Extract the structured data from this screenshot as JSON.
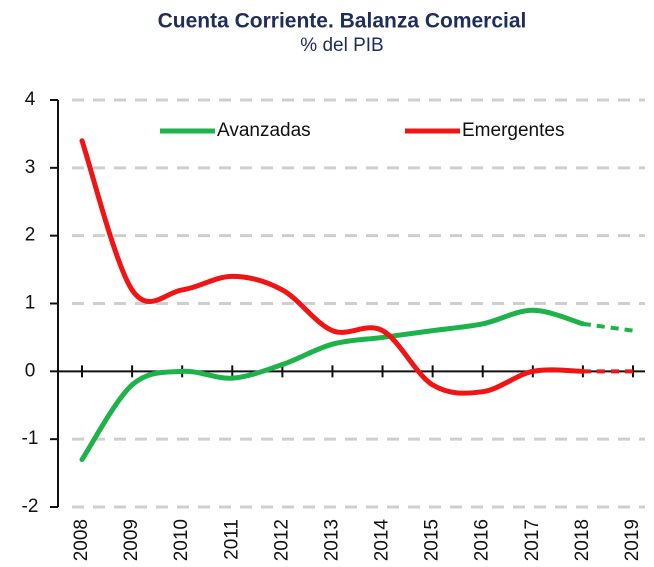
{
  "chart_data": {
    "type": "line",
    "title": "Cuenta Corriente. Balanza Comercial",
    "subtitle": "% del PIB",
    "categories": [
      "2008",
      "2009",
      "2010",
      "2011",
      "2012",
      "2013",
      "2014",
      "2015",
      "2016",
      "2017",
      "2018",
      "2019"
    ],
    "series": [
      {
        "name": "Avanzadas",
        "color": "#1db34a",
        "values": [
          -1.3,
          -0.2,
          0.0,
          -0.1,
          0.1,
          0.4,
          0.5,
          0.6,
          0.7,
          0.9,
          0.7,
          0.6
        ]
      },
      {
        "name": "Emergentes",
        "color": "#f01414",
        "values": [
          3.4,
          1.2,
          1.2,
          1.4,
          1.2,
          0.6,
          0.6,
          -0.2,
          -0.3,
          0.0,
          0.0,
          0.0
        ]
      }
    ],
    "dashed_from": "2018",
    "ylim": [
      -2,
      4
    ],
    "yticks": [
      -2,
      -1,
      0,
      1,
      2,
      3,
      4
    ],
    "grid": true
  }
}
